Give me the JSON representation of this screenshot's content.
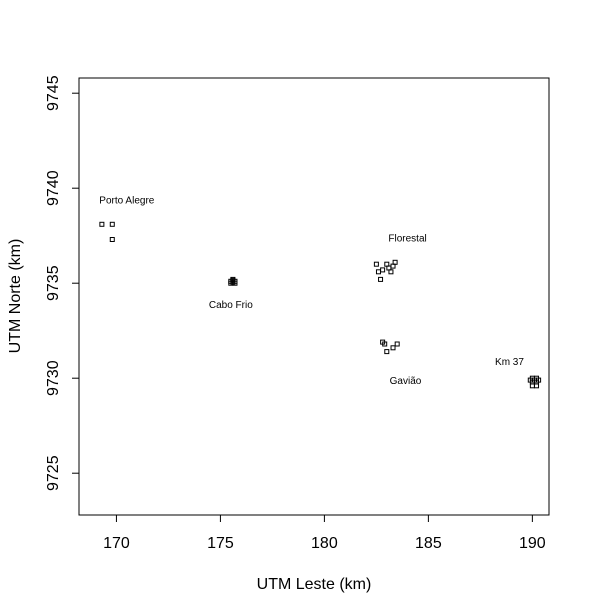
{
  "chart_data": {
    "type": "scatter",
    "title": "",
    "xlabel": "UTM Leste (km)",
    "ylabel": "UTM Norte (km)",
    "xlim": [
      168.2,
      190.8
    ],
    "ylim": [
      9722.8,
      9745.8
    ],
    "xticks": [
      170,
      175,
      180,
      185,
      190
    ],
    "yticks": [
      9725,
      9730,
      9735,
      9740,
      9745
    ],
    "grid": false,
    "legend": "none",
    "colors": {
      "marker_stroke": "#000000",
      "background": "#ffffff"
    },
    "groups": [
      {
        "name": "Porto Alegre",
        "label_at": [
          170.5,
          9739.4
        ],
        "points": [
          [
            169.3,
            9738.1
          ],
          [
            169.8,
            9738.1
          ],
          [
            169.8,
            9737.3
          ]
        ]
      },
      {
        "name": "Cabo Frio",
        "label_at": [
          175.5,
          9733.9
        ],
        "points": [
          [
            175.5,
            9735.1
          ],
          [
            175.6,
            9735.2
          ],
          [
            175.7,
            9735.1
          ],
          [
            175.5,
            9735.0
          ],
          [
            175.6,
            9735.05
          ],
          [
            175.7,
            9735.0
          ],
          [
            175.6,
            9735.15
          ]
        ]
      },
      {
        "name": "Florestal",
        "label_at": [
          184.0,
          9737.4
        ],
        "points": [
          [
            182.5,
            9736.0
          ],
          [
            182.6,
            9735.6
          ],
          [
            182.8,
            9735.7
          ],
          [
            182.7,
            9735.2
          ],
          [
            183.0,
            9736.0
          ],
          [
            183.1,
            9735.8
          ],
          [
            183.2,
            9735.6
          ],
          [
            183.4,
            9736.1
          ],
          [
            183.3,
            9735.9
          ]
        ]
      },
      {
        "name": "Gavião",
        "label_at": [
          183.9,
          9729.9
        ],
        "points": [
          [
            182.8,
            9731.9
          ],
          [
            182.9,
            9731.8
          ],
          [
            183.0,
            9731.4
          ],
          [
            183.3,
            9731.6
          ],
          [
            183.5,
            9731.8
          ]
        ]
      },
      {
        "name": "Km 37",
        "label_at": [
          188.9,
          9730.9
        ],
        "points": [
          [
            190.0,
            9730.0
          ],
          [
            190.2,
            9730.0
          ],
          [
            190.0,
            9729.8
          ],
          [
            190.2,
            9729.8
          ],
          [
            190.1,
            9729.9
          ],
          [
            190.0,
            9729.6
          ],
          [
            190.2,
            9729.6
          ],
          [
            190.3,
            9729.9
          ],
          [
            189.9,
            9729.9
          ]
        ]
      }
    ]
  }
}
